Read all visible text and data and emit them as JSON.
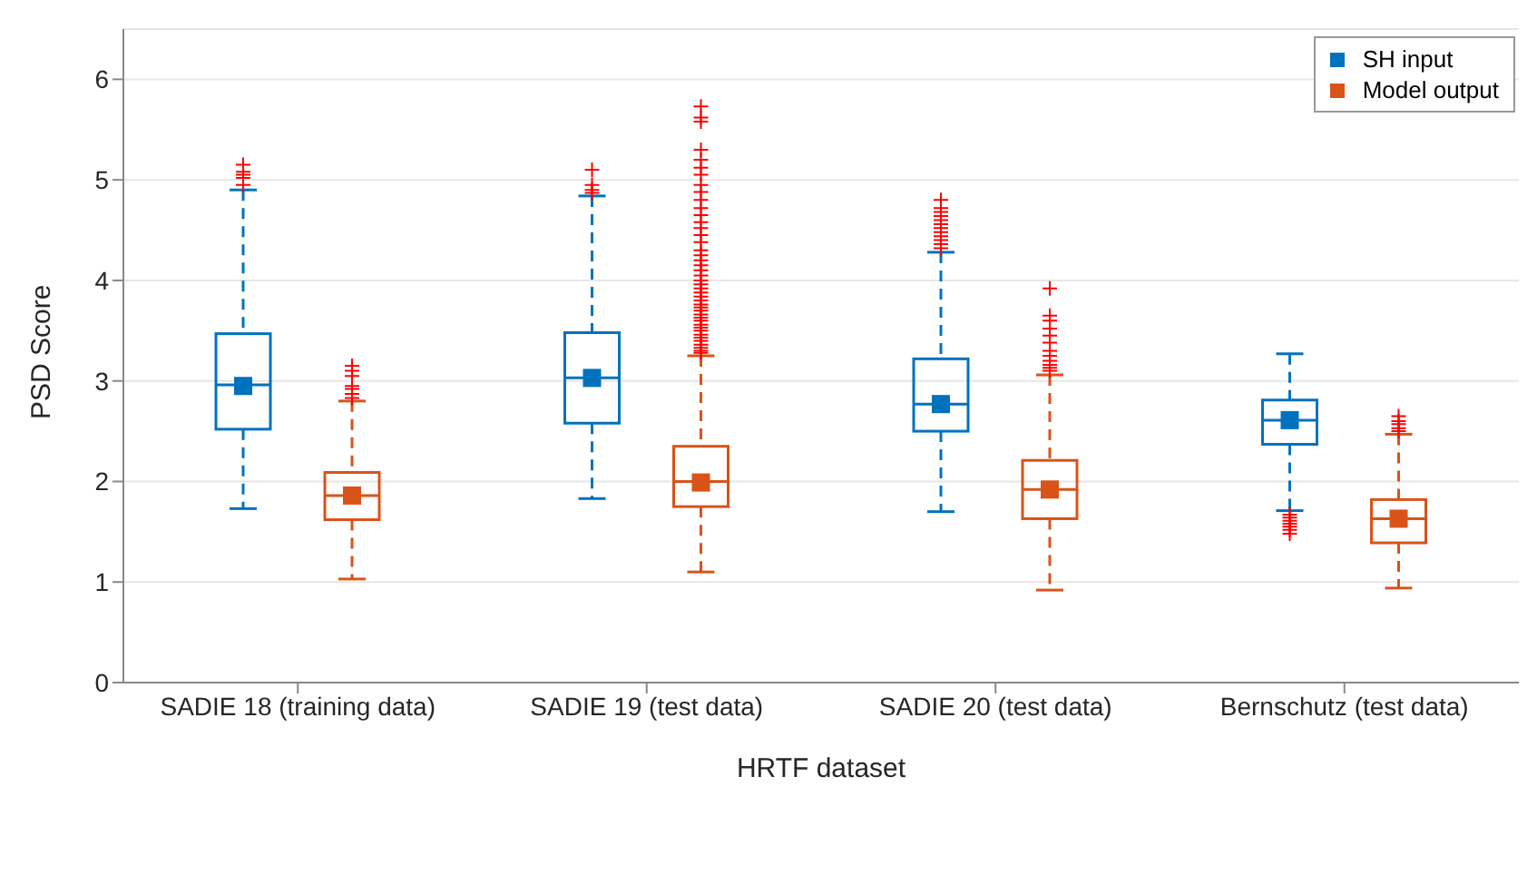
{
  "chart_data": {
    "type": "box",
    "xlabel": "HRTF dataset",
    "ylabel": "PSD Score",
    "categories": [
      "SADIE 18 (training data)",
      "SADIE 19 (test data)",
      "SADIE 20 (test data)",
      "Bernschutz (test data)"
    ],
    "ylim": [
      0,
      6.5
    ],
    "yticks": [
      0,
      1,
      2,
      3,
      4,
      5,
      6
    ],
    "grid": "y",
    "legend": "top right",
    "marker": "square",
    "line_style": "dashed",
    "series": [
      {
        "name": "SH input",
        "color": "#0072bd",
        "boxes": [
          {
            "low": 1.73,
            "q1": 2.52,
            "median": 2.96,
            "q3": 3.47,
            "high": 4.9,
            "mean": 2.95,
            "outliers": [
              4.95,
              5.02,
              5.05,
              5.08,
              5.15
            ]
          },
          {
            "low": 1.83,
            "q1": 2.58,
            "median": 3.03,
            "q3": 3.48,
            "high": 4.84,
            "mean": 3.03,
            "outliers": [
              4.87,
              4.9,
              4.95,
              5.1
            ]
          },
          {
            "low": 1.7,
            "q1": 2.5,
            "median": 2.77,
            "q3": 3.22,
            "high": 4.28,
            "mean": 2.77,
            "outliers": [
              4.32,
              4.36,
              4.4,
              4.44,
              4.48,
              4.52,
              4.56,
              4.6,
              4.64,
              4.68,
              4.72,
              4.8
            ]
          },
          {
            "low": 1.71,
            "q1": 2.37,
            "median": 2.61,
            "q3": 2.81,
            "high": 3.27,
            "mean": 2.61,
            "outliers": [
              1.48,
              1.52,
              1.55,
              1.58,
              1.61,
              1.64,
              1.67
            ]
          }
        ]
      },
      {
        "name": "Model output",
        "color": "#d95319",
        "boxes": [
          {
            "low": 1.03,
            "q1": 1.62,
            "median": 1.86,
            "q3": 2.09,
            "high": 2.8,
            "mean": 1.86,
            "outliers": [
              2.83,
              2.87,
              2.92,
              2.95,
              3.05,
              3.1,
              3.15
            ]
          },
          {
            "low": 1.1,
            "q1": 1.75,
            "median": 2.0,
            "q3": 2.35,
            "high": 3.25,
            "mean": 1.99,
            "outliers": [
              3.28,
              3.3,
              3.33,
              3.36,
              3.4,
              3.43,
              3.46,
              3.5,
              3.53,
              3.56,
              3.6,
              3.63,
              3.66,
              3.7,
              3.73,
              3.76,
              3.8,
              3.84,
              3.88,
              3.92,
              3.96,
              4.0,
              4.05,
              4.1,
              4.15,
              4.2,
              4.25,
              4.3,
              4.38,
              4.45,
              4.52,
              4.58,
              4.65,
              4.72,
              4.8,
              4.88,
              4.95,
              5.05,
              5.12,
              5.2,
              5.3,
              5.58,
              5.62,
              5.73
            ]
          },
          {
            "low": 0.92,
            "q1": 1.63,
            "median": 1.92,
            "q3": 2.21,
            "high": 3.06,
            "mean": 1.92,
            "outliers": [
              3.1,
              3.13,
              3.16,
              3.2,
              3.25,
              3.3,
              3.38,
              3.45,
              3.52,
              3.6,
              3.65,
              3.92
            ]
          },
          {
            "low": 0.94,
            "q1": 1.39,
            "median": 1.63,
            "q3": 1.82,
            "high": 2.47,
            "mean": 1.63,
            "outliers": [
              2.5,
              2.53,
              2.57,
              2.6,
              2.65
            ]
          }
        ]
      }
    ]
  }
}
